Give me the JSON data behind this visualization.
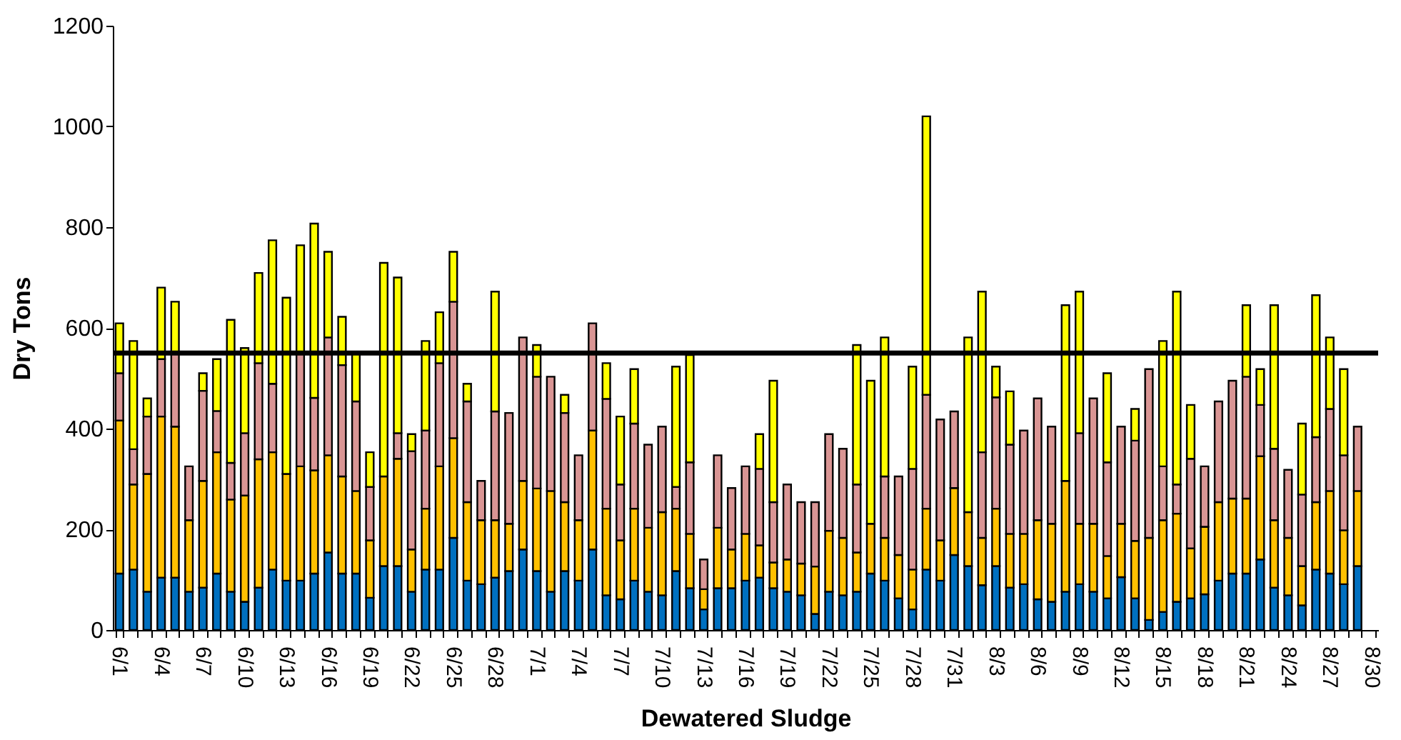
{
  "chart_data": {
    "type": "bar",
    "stacked": true,
    "xlabel": "Dewatered Sludge",
    "ylabel": "Dry Tons",
    "categories": [
      "6/1",
      null,
      null,
      "6/4",
      null,
      null,
      "6/7",
      null,
      null,
      "6/10",
      null,
      null,
      "6/13",
      null,
      null,
      "6/16",
      null,
      null,
      "6/19",
      null,
      null,
      "6/22",
      null,
      null,
      "6/25",
      null,
      null,
      "6/28",
      null,
      null,
      "7/1",
      null,
      null,
      "7/4",
      null,
      null,
      "7/7",
      null,
      null,
      "7/10",
      null,
      null,
      "7/13",
      null,
      null,
      "7/16",
      null,
      null,
      "7/19",
      null,
      null,
      "7/22",
      null,
      null,
      "7/25",
      null,
      null,
      "7/28",
      null,
      null,
      "7/31",
      null,
      null,
      "8/3",
      null,
      null,
      "8/6",
      null,
      null,
      "8/9",
      null,
      null,
      "8/12",
      null,
      null,
      "8/15",
      null,
      null,
      "8/18",
      null,
      null,
      "8/21",
      null,
      null,
      "8/24",
      null,
      null,
      "8/27",
      null,
      null,
      "8/30"
    ],
    "series": [
      {
        "color": "#0070c0",
        "values": [
          112,
          120,
          76,
          104,
          104,
          76,
          84,
          112,
          76,
          56,
          84,
          120,
          98,
          98,
          112,
          154,
          112,
          112,
          64,
          127,
          127,
          76,
          120,
          120,
          183,
          98,
          91,
          104,
          117,
          160,
          117,
          76,
          117,
          98,
          160,
          69,
          61,
          98,
          76,
          69,
          117,
          83,
          41,
          83,
          83,
          98,
          104,
          83,
          76,
          69,
          32,
          76,
          69,
          76,
          112,
          98,
          63,
          41,
          120,
          98,
          149,
          127,
          89,
          127,
          84,
          91,
          61,
          56,
          76,
          91,
          76,
          63,
          105,
          63,
          20,
          36,
          56,
          63,
          71,
          98,
          112,
          112,
          140,
          84,
          69,
          49,
          120,
          112,
          91,
          127,
          null
        ]
      },
      {
        "color": "#ffc000",
        "values": [
          304,
          169,
          234,
          320,
          300,
          142,
          212,
          241,
          183,
          211,
          255,
          233,
          212,
          227,
          205,
          193,
          193,
          164,
          114,
          178,
          213,
          84,
          121,
          205,
          198,
          156,
          127,
          114,
          94,
          136,
          164,
          200,
          137,
          120,
          236,
          172,
          117,
          143,
          127,
          165,
          124,
          108,
          40,
          120,
          77,
          93,
          64,
          51,
          64,
          63,
          94,
          121,
          114,
          78,
          99,
          85,
          86,
          79,
          121,
          80,
          133,
          107,
          94,
          114,
          107,
          100,
          157,
          155,
          220,
          120,
          135,
          84,
          106,
          114,
          163,
          182,
          175,
          99,
          134,
          156,
          149,
          149,
          205,
          134,
          114,
          78,
          134,
          164,
          107,
          149,
          null
        ]
      },
      {
        "color": "#d99594",
        "values": [
          94,
          70,
          114,
          114,
          144,
          107,
          179,
          82,
          73,
          124,
          191,
          136,
          0,
          223,
          144,
          234,
          221,
          178,
          106,
          0,
          51,
          195,
          155,
          205,
          271,
          200,
          78,
          216,
          220,
          285,
          222,
          227,
          177,
          129,
          213,
          218,
          111,
          169,
          165,
          170,
          43,
          142,
          59,
          144,
          122,
          134,
          152,
          120,
          149,
          122,
          128,
          192,
          177,
          135,
          0,
          122,
          156,
          200,
          226,
          240,
          152,
          0,
          170,
          221,
          177,
          205,
          242,
          193,
          0,
          180,
          249,
          186,
          193,
          199,
          335,
          107,
          58,
          178,
          120,
          200,
          234,
          242,
          102,
          142,
          135,
          142,
          129,
          163,
          149,
          128,
          null
        ]
      },
      {
        "color": "#ffff00",
        "values": [
          99,
          215,
          36,
          142,
          104,
          0,
          35,
          103,
          284,
          169,
          179,
          285,
          350,
          216,
          346,
          170,
          96,
          94,
          69,
          424,
          309,
          34,
          178,
          101,
          99,
          35,
          0,
          238,
          0,
          0,
          63,
          0,
          36,
          0,
          0,
          71,
          135,
          108,
          0,
          0,
          239,
          213,
          0,
          0,
          0,
          0,
          69,
          241,
          0,
          0,
          0,
          0,
          0,
          277,
          284,
          276,
          0,
          203,
          553,
          0,
          0,
          347,
          319,
          61,
          106,
          0,
          0,
          0,
          349,
          281,
          0,
          177,
          0,
          63,
          0,
          249,
          383,
          107,
          0,
          0,
          0,
          142,
          71,
          285,
          0,
          141,
          282,
          142,
          171,
          0,
          null
        ]
      }
    ],
    "ylim": [
      0,
      1200
    ],
    "yticks": [
      0,
      200,
      400,
      600,
      800,
      1000,
      1200
    ],
    "grid": false,
    "legend": false,
    "ref_lines": [
      {
        "axis": "y",
        "value": 550,
        "color": "#000000"
      }
    ]
  }
}
